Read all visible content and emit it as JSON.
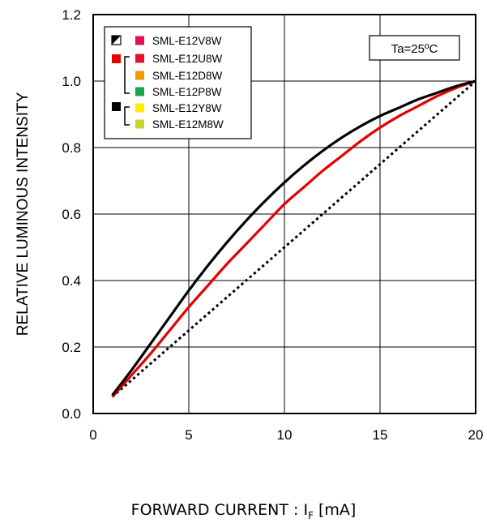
{
  "chart_data": {
    "type": "line",
    "xlabel": "FORWARD CURRENT : I",
    "xlabel_sub": "F",
    "xlabel_unit": " [mA]",
    "ylabel": "RELATIVE LUMINOUS INTENSITY",
    "xlim": [
      0,
      20
    ],
    "ylim": [
      0,
      1.2
    ],
    "x_ticks": [
      "0",
      "5",
      "10",
      "15",
      "20"
    ],
    "y_ticks": [
      "0.0",
      "0.2",
      "0.4",
      "0.6",
      "0.8",
      "1.0",
      "1.2"
    ],
    "grid": true,
    "annotation": "Ta=25ºC",
    "legend": {
      "placement": "top-left",
      "items": [
        {
          "label": "SML-E12V8W",
          "color": "#e0105a"
        },
        {
          "label": "SML-E12U8W",
          "color": "#e8112d"
        },
        {
          "label": "SML-E12D8W",
          "color": "#f39800"
        },
        {
          "label": "SML-E12P8W",
          "color": "#1aa64a"
        },
        {
          "label": "SML-E12Y8W",
          "color": "#ffee00"
        },
        {
          "label": "SML-E12M8W",
          "color": "#c2d62e"
        }
      ]
    },
    "series": [
      {
        "style": "dotted",
        "color": "#000000",
        "x": [
          1,
          20
        ],
        "y": [
          0.05,
          1.0
        ]
      },
      {
        "style": "solid",
        "color": "#e50000",
        "x": [
          1,
          2,
          3,
          4,
          5,
          6,
          7,
          8,
          9,
          10,
          11,
          12,
          13,
          14,
          15,
          16,
          17,
          18,
          19,
          20
        ],
        "y": [
          0.05,
          0.115,
          0.18,
          0.25,
          0.32,
          0.385,
          0.45,
          0.51,
          0.57,
          0.63,
          0.68,
          0.73,
          0.775,
          0.82,
          0.86,
          0.895,
          0.925,
          0.955,
          0.98,
          1.0
        ]
      },
      {
        "style": "solid",
        "color": "#000000",
        "x": [
          1,
          2,
          3,
          4,
          5,
          6,
          7,
          8,
          9,
          10,
          11,
          12,
          13,
          14,
          15,
          16,
          17,
          18,
          19,
          20
        ],
        "y": [
          0.055,
          0.13,
          0.21,
          0.29,
          0.37,
          0.445,
          0.515,
          0.58,
          0.64,
          0.695,
          0.745,
          0.79,
          0.83,
          0.865,
          0.895,
          0.92,
          0.945,
          0.965,
          0.985,
          1.0
        ]
      }
    ]
  }
}
